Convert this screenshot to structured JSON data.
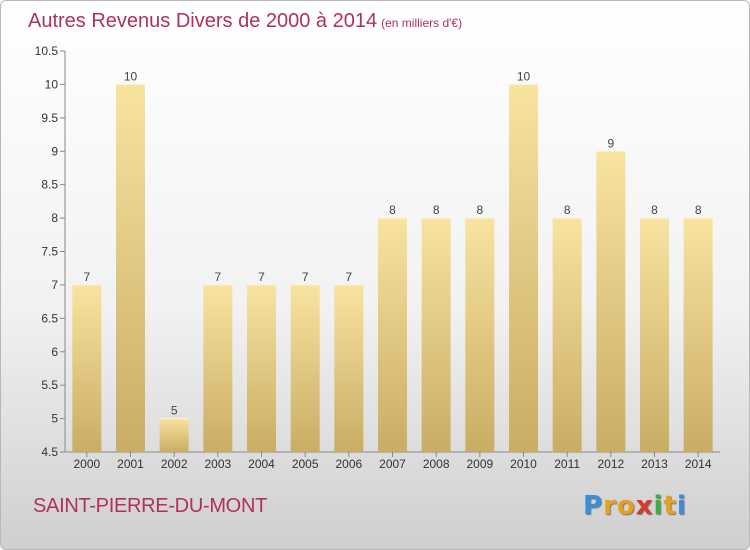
{
  "header": {
    "title": "Autres Revenus Divers de 2000 à 2014",
    "unit_note": "(en milliers d'€)"
  },
  "footer": {
    "city": "SAINT-PIERRE-DU-MONT",
    "logo": {
      "letters": [
        "P",
        "r",
        "o",
        "x",
        "i",
        "t",
        "i"
      ],
      "colors": [
        "#3b8fd9",
        "#e8a020",
        "#e8a020",
        "#d63a2a",
        "#3fae3f",
        "#e8a020",
        "#3b8fd9"
      ]
    }
  },
  "colors": {
    "title": "#b03060",
    "bar_top": "#f8e3a0",
    "bar_bottom": "#c9ad64"
  },
  "chart_data": {
    "type": "bar",
    "title": "Autres Revenus Divers de 2000 à 2014",
    "subtitle": "(en milliers d'€)",
    "xlabel": "",
    "ylabel": "",
    "categories": [
      "2000",
      "2001",
      "2002",
      "2003",
      "2004",
      "2005",
      "2006",
      "2007",
      "2008",
      "2009",
      "2010",
      "2011",
      "2012",
      "2013",
      "2014"
    ],
    "values": [
      7,
      10,
      5,
      7,
      7,
      7,
      7,
      8,
      8,
      8,
      10,
      8,
      9,
      8,
      8
    ],
    "data_labels": [
      "7",
      "10",
      "5",
      "7",
      "7",
      "7",
      "7",
      "8",
      "8",
      "8",
      "10",
      "8",
      "9",
      "8",
      "8"
    ],
    "ylim": [
      4.5,
      10.5
    ],
    "yticks": [
      4.5,
      5,
      5.5,
      6,
      6.5,
      7,
      7.5,
      8,
      8.5,
      9,
      9.5,
      10,
      10.5
    ],
    "ytick_labels": [
      "4.5",
      "5",
      "5.5",
      "6",
      "6.5",
      "7",
      "7.5",
      "8",
      "8.5",
      "9",
      "9.5",
      "10",
      "10.5"
    ],
    "grid": false,
    "legend": "none"
  }
}
